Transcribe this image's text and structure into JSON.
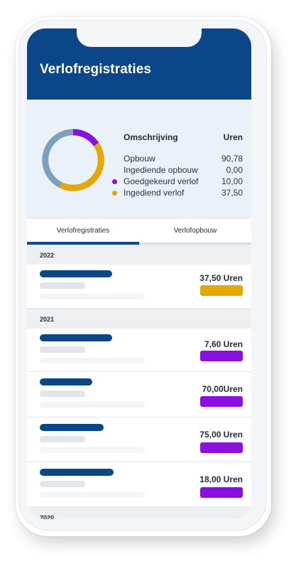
{
  "header": {
    "title": "Verlofregistraties"
  },
  "summary": {
    "col_left": "Omschrijving",
    "col_right": "Uren",
    "rows": [
      {
        "label": "Opbouw",
        "value": "90,78",
        "color": ""
      },
      {
        "label": "Ingediende opbouw",
        "value": "0,00",
        "color": ""
      },
      {
        "label": "Goedgekeurd verlof",
        "value": "10,00",
        "color": "#8b10e0"
      },
      {
        "label": "Ingediend verlof",
        "value": "37,50",
        "color": "#e6a800"
      }
    ],
    "donut": {
      "track_color": "#7fa0bd",
      "purple": "#8b10e0",
      "yellow": "#e6a800"
    }
  },
  "tabs": [
    {
      "label": "Verlofregistraties",
      "active": true
    },
    {
      "label": "Verlofopbouw",
      "active": false
    }
  ],
  "years": [
    {
      "year": "2022",
      "entries": [
        {
          "hours": "37,50 Uren",
          "status_color": "#e6a800"
        }
      ]
    },
    {
      "year": "2021",
      "entries": [
        {
          "hours": "7,60 Uren",
          "status_color": "#8b10e0"
        },
        {
          "hours": "70,00Uren",
          "status_color": "#8b10e0"
        },
        {
          "hours": "75,00 Uren",
          "status_color": "#8b10e0"
        },
        {
          "hours": "18,00 Uren",
          "status_color": "#8b10e0"
        }
      ]
    },
    {
      "year": "2020",
      "entries": []
    }
  ]
}
